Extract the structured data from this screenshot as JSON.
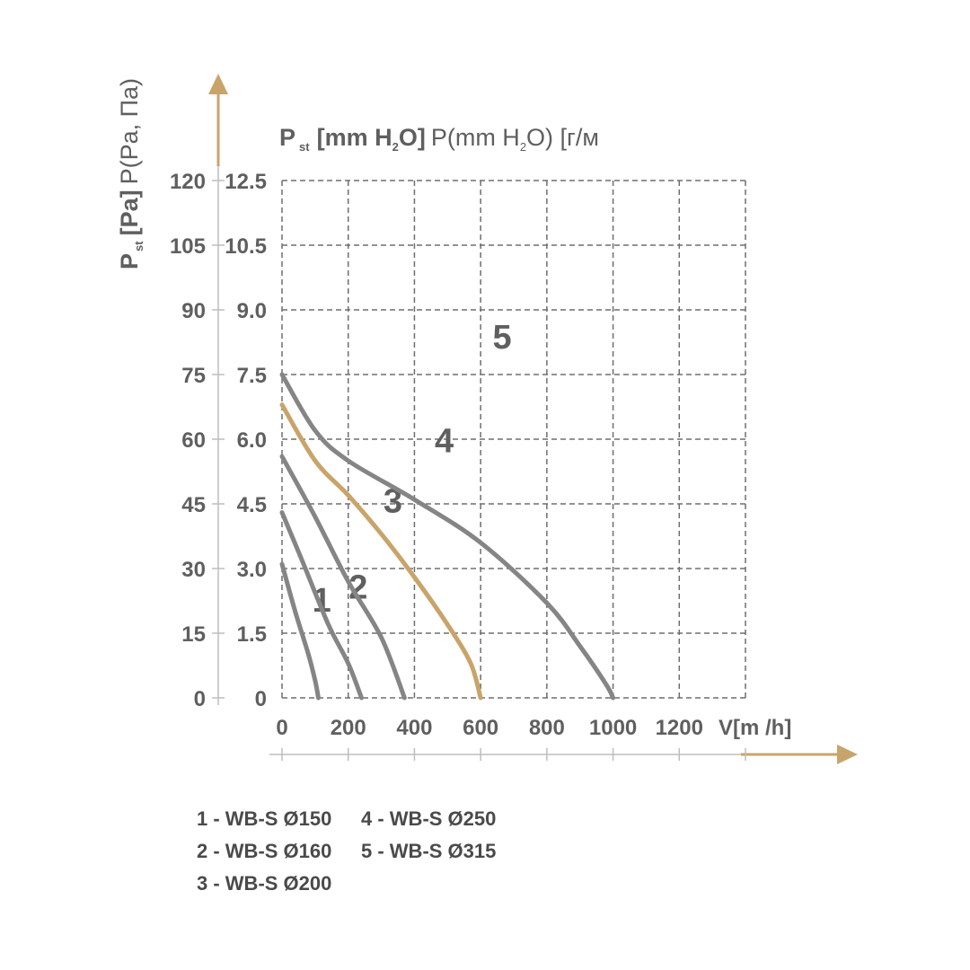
{
  "chart_data": {
    "type": "line",
    "ylabel_left_main": "P",
    "ylabel_left_sub": "st",
    "ylabel_left_unit": "[Pa]",
    "ylabel_left_extra": "P(Pa, Па)",
    "ylabel_top_main": "P",
    "ylabel_top_sub": "st",
    "ylabel_top_unit_a": "[mm H",
    "ylabel_top_unit_sub": "2",
    "ylabel_top_unit_b": "O]",
    "ylabel_top_extra_a": "P(mm H",
    "ylabel_top_extra_sub": "2",
    "ylabel_top_extra_b": "O) [г/м",
    "xlabel": "V[m /h]",
    "y_ticks_pa": [
      "120",
      "105",
      "90",
      "75",
      "60",
      "45",
      "30",
      "15",
      "0"
    ],
    "y_ticks_mm": [
      "12.5",
      "10.5",
      "9.0",
      "7.5",
      "6.0",
      "4.5",
      "3.0",
      "1.5",
      "0"
    ],
    "x_ticks": [
      "0",
      "200",
      "400",
      "600",
      "800",
      "1000",
      "1200"
    ],
    "xlim": [
      0,
      1400
    ],
    "ylim": [
      0,
      120
    ],
    "grid": true,
    "colors": {
      "axis": "#c9a46a",
      "grid": "#6e6e6e",
      "curve": "#858585",
      "highlight": "#c9a46a",
      "text": "#5f5f60"
    },
    "series": [
      {
        "name": "1",
        "color": "#858585",
        "x": [
          0,
          40,
          80,
          100,
          110
        ],
        "y": [
          31,
          20,
          10,
          4,
          0
        ]
      },
      {
        "name": "2",
        "color": "#858585",
        "x": [
          0,
          60,
          140,
          200,
          240
        ],
        "y": [
          43,
          32,
          17,
          8,
          0
        ]
      },
      {
        "name": "3",
        "color": "#858585",
        "x": [
          0,
          100,
          200,
          300,
          370
        ],
        "y": [
          56,
          42,
          27,
          14,
          0
        ]
      },
      {
        "name": "4",
        "color": "#c9a46a",
        "x": [
          0,
          100,
          200,
          300,
          400,
          500,
          570,
          600
        ],
        "y": [
          68,
          55,
          47,
          38,
          28,
          17,
          8,
          0
        ]
      },
      {
        "name": "5",
        "color": "#858585",
        "x": [
          0,
          100,
          200,
          400,
          600,
          800,
          900,
          980,
          1000
        ],
        "y": [
          75,
          62,
          55,
          46,
          36,
          22,
          12,
          3,
          0
        ]
      }
    ],
    "legend": [
      "1 - WB-S Ø150",
      "2 - WB-S Ø160",
      "3 - WB-S Ø200",
      "4 - WB-S Ø250",
      "5 - WB-S Ø315"
    ]
  }
}
